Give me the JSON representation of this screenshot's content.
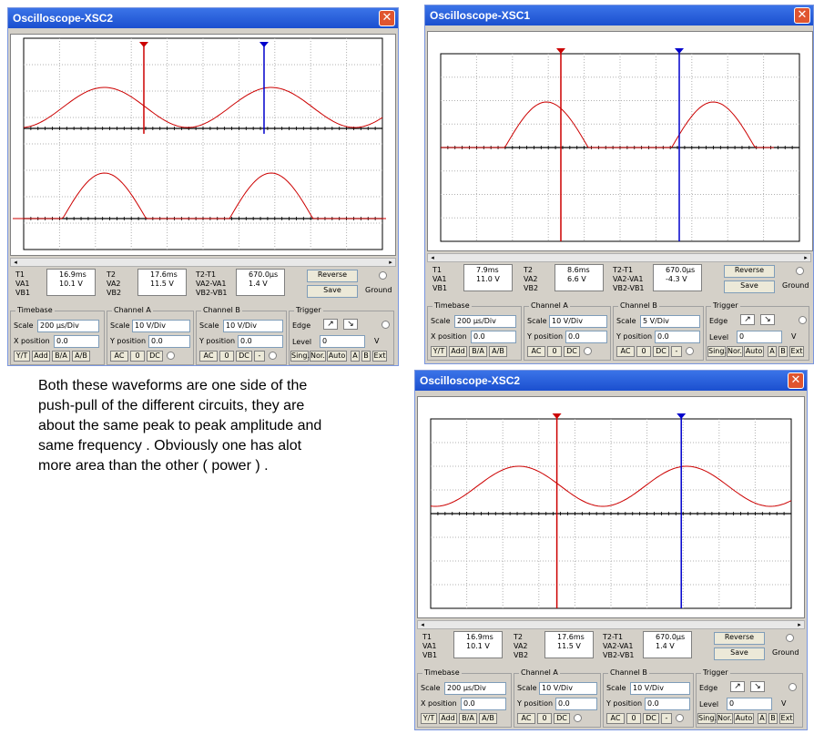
{
  "note": "Both these waveforms are one side of the\npush-pull of the different circuits, they are\nabout the same peak to peak amplitude and\nsame frequency . Obviously one has alot\nmore area than the other ( power ) .",
  "colors": {
    "trace": "#cc0000",
    "cursor1": "#cc0000",
    "cursor2": "#0000cc",
    "titlebar": "#2a5fdc"
  },
  "windows": [
    {
      "title": "Oscilloscope-XSC2",
      "readouts": {
        "t1": {
          "label": "T1",
          "time": "16.9ms",
          "va": "10.1 V",
          "vb": ""
        },
        "t2": {
          "label": "T2",
          "time": "17.6ms",
          "va": "11.5 V",
          "vb": ""
        },
        "dt": {
          "label": "T2-T1",
          "time": "670.0µs",
          "va": "1.4 V",
          "vb": ""
        }
      },
      "timebase_scale": "200 µs/Div",
      "x_position": "0.0",
      "cha_scale": "10 V/Div",
      "cha_ypos": "0.0",
      "chb_scale": "10 V/Div",
      "chb_ypos": "0.0",
      "level": "0"
    },
    {
      "title": "Oscilloscope-XSC1",
      "readouts": {
        "t1": {
          "label": "T1",
          "time": "7.9ms",
          "va": "11.0 V",
          "vb": ""
        },
        "t2": {
          "label": "T2",
          "time": "8.6ms",
          "va": "6.6 V",
          "vb": ""
        },
        "dt": {
          "label": "T2-T1",
          "time": "670.0µs",
          "va": "-4.3 V",
          "vb": ""
        }
      },
      "timebase_scale": "200 µs/Div",
      "x_position": "0.0",
      "cha_scale": "10 V/Div",
      "cha_ypos": "0.0",
      "chb_scale": "5 V/Div",
      "chb_ypos": "0.0",
      "level": "0"
    },
    {
      "title": "Oscilloscope-XSC2",
      "readouts": {
        "t1": {
          "label": "T1",
          "time": "16.9ms",
          "va": "10.1 V",
          "vb": ""
        },
        "t2": {
          "label": "T2",
          "time": "17.6ms",
          "va": "11.5 V",
          "vb": ""
        },
        "dt": {
          "label": "T2-T1",
          "time": "670.0µs",
          "va": "1.4 V",
          "vb": ""
        }
      },
      "timebase_scale": "200 µs/Div",
      "x_position": "0.0",
      "cha_scale": "10 V/Div",
      "cha_ypos": "0.0",
      "chb_scale": "10 V/Div",
      "chb_ypos": "0.0",
      "level": "0"
    }
  ],
  "labels": {
    "va1": "VA1",
    "vb1": "VB1",
    "va2": "VA2",
    "vb2": "VB2",
    "va2va1": "VA2-VA1",
    "vb2vb1": "VB2-VB1",
    "reverse": "Reverse",
    "save": "Save",
    "ground": "Ground",
    "timebase": "Timebase",
    "channel_a": "Channel A",
    "channel_b": "Channel B",
    "trigger": "Trigger",
    "scale": "Scale",
    "x_position": "X position",
    "y_position": "Y position",
    "edge": "Edge",
    "level": "Level",
    "volt": "V",
    "yt": "Y/T",
    "add": "Add",
    "ba": "B/A",
    "ab": "A/B",
    "ac": "AC",
    "zero": "0",
    "dc": "DC",
    "minus": "-",
    "sing": "Sing.",
    "nor": "Nor.",
    "auto": "Auto",
    "a": "A",
    "b": "B",
    "ext": "Ext",
    "close": "✕",
    "left_arrow": "◂",
    "right_arrow": "▸",
    "rise": "↗",
    "fall": "↘"
  }
}
